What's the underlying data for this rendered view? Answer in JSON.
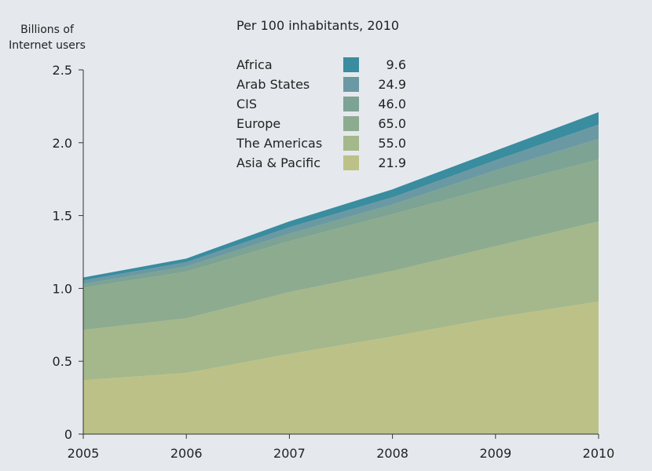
{
  "chart_data": {
    "type": "area",
    "stacked": true,
    "ylabel": "Billions of\nInternet users",
    "ylabel_lines": [
      "Billions of",
      "Internet users"
    ],
    "legend_title": "Per 100 inhabitants, 2010",
    "x": [
      2005,
      2006,
      2007,
      2008,
      2009,
      2010
    ],
    "x_tick_labels": [
      "2005",
      "2006",
      "2007",
      "2008",
      "2009",
      "2010"
    ],
    "y_tick_labels": [
      "0",
      "0.5",
      "1.0",
      "1.5",
      "2.0",
      "2.5"
    ],
    "y_ticks": [
      0,
      0.5,
      1.0,
      1.5,
      2.0,
      2.5
    ],
    "ylim": [
      0,
      2.5
    ],
    "series": [
      {
        "name": "Asia & Pacific",
        "legend_value": "21.9",
        "color": "#bcc287",
        "values": [
          0.37,
          0.42,
          0.55,
          0.67,
          0.8,
          0.91
        ]
      },
      {
        "name": "The Americas",
        "legend_value": "55.0",
        "color": "#a5b88b",
        "values": [
          0.345,
          0.375,
          0.425,
          0.45,
          0.49,
          0.55
        ]
      },
      {
        "name": "Europe",
        "legend_value": "65.0",
        "color": "#8dab8f",
        "values": [
          0.29,
          0.32,
          0.35,
          0.39,
          0.41,
          0.425
        ]
      },
      {
        "name": "CIS",
        "legend_value": "46.0",
        "color": "#7ca393",
        "values": [
          0.025,
          0.035,
          0.05,
          0.065,
          0.11,
          0.14
        ]
      },
      {
        "name": "Arab States",
        "legend_value": "24.9",
        "color": "#6b99a3",
        "values": [
          0.025,
          0.03,
          0.045,
          0.05,
          0.07,
          0.1
        ]
      },
      {
        "name": "Africa",
        "legend_value": "9.6",
        "color": "#3a8c9f",
        "values": [
          0.02,
          0.025,
          0.04,
          0.055,
          0.065,
          0.085
        ]
      }
    ],
    "legend_order": [
      "Africa",
      "Arab States",
      "CIS",
      "Europe",
      "The Americas",
      "Asia & Pacific"
    ],
    "grid": false,
    "legend_position": "top"
  }
}
